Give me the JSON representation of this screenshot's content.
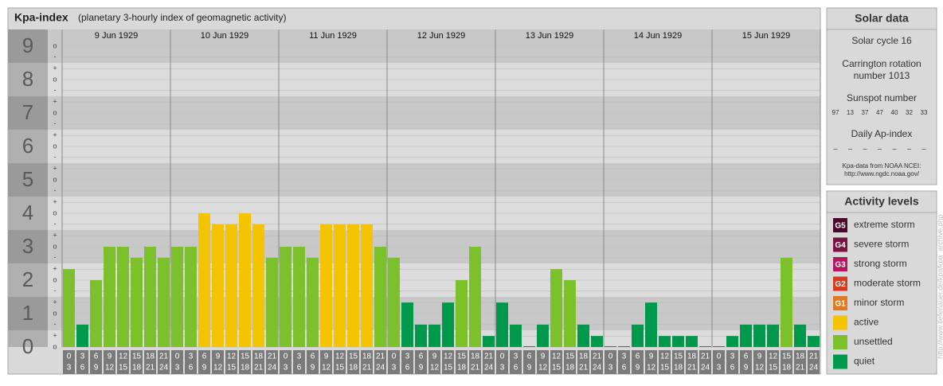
{
  "chart_data": {
    "type": "bar",
    "title": "Kpa-index",
    "subtitle": "(planetary 3-hourly index of geomagnetic activity)",
    "days": [
      "9 Jun 1929",
      "10 Jun 1929",
      "11 Jun 1929",
      "12 Jun 1929",
      "13 Jun 1929",
      "14 Jun 1929",
      "15 Jun 1929"
    ],
    "hours": [
      "0",
      "3",
      "6",
      "9",
      "12",
      "15",
      "18",
      "21",
      "24"
    ],
    "values": [
      2.33,
      0.67,
      2,
      3,
      3,
      2.67,
      3,
      2.67,
      3,
      3,
      4,
      3.67,
      3.67,
      4,
      3.67,
      2.67,
      3,
      3,
      2.67,
      3.67,
      3.67,
      3.67,
      3.67,
      3,
      2.67,
      1.33,
      0.67,
      0.67,
      1.33,
      2,
      3,
      0.33,
      1.33,
      0.67,
      0,
      0.67,
      2.33,
      2,
      0.67,
      0.33,
      0,
      0,
      0.67,
      1.33,
      0.33,
      0.33,
      0.33,
      0,
      0,
      0.33,
      0.67,
      0.67,
      0.67,
      2.67,
      0.67,
      0.33
    ],
    "ylim": [
      0,
      9.5
    ],
    "yticks": [
      0,
      1,
      2,
      3,
      4,
      5,
      6,
      7,
      8,
      9
    ],
    "minor_yticks": [
      {
        "value": 0,
        "label": "o"
      },
      {
        "value": 0.33,
        "label": "+"
      },
      {
        "value": 0.67,
        "label": "-"
      },
      {
        "value": 1,
        "label": "o"
      },
      {
        "value": 1.33,
        "label": "+"
      },
      {
        "value": 1.67,
        "label": "-"
      },
      {
        "value": 2,
        "label": "o"
      },
      {
        "value": 2.33,
        "label": "+"
      },
      {
        "value": 2.67,
        "label": "-"
      },
      {
        "value": 3,
        "label": "o"
      },
      {
        "value": 3.33,
        "label": "+"
      },
      {
        "value": 3.67,
        "label": "-"
      },
      {
        "value": 4,
        "label": "o"
      },
      {
        "value": 4.33,
        "label": "+"
      },
      {
        "value": 4.67,
        "label": "-"
      },
      {
        "value": 5,
        "label": "o"
      },
      {
        "value": 5.33,
        "label": "+"
      },
      {
        "value": 5.67,
        "label": "-"
      },
      {
        "value": 6,
        "label": "o"
      },
      {
        "value": 6.33,
        "label": "+"
      },
      {
        "value": 6.67,
        "label": "-"
      },
      {
        "value": 7,
        "label": "o"
      },
      {
        "value": 7.33,
        "label": "+"
      },
      {
        "value": 7.67,
        "label": "-"
      },
      {
        "value": 8,
        "label": "o"
      },
      {
        "value": 8.33,
        "label": "+"
      },
      {
        "value": 8.67,
        "label": "-"
      },
      {
        "value": 9,
        "label": "o"
      }
    ],
    "levels": [
      {
        "code": "G5",
        "name": "extreme storm",
        "color": "#4a0a2c",
        "min": 8.67
      },
      {
        "code": "G4",
        "name": "severe storm",
        "color": "#7a1242",
        "min": 7.67
      },
      {
        "code": "G3",
        "name": "strong storm",
        "color": "#b5175c",
        "min": 6.67
      },
      {
        "code": "G2",
        "name": "moderate storm",
        "color": "#d63b1f",
        "min": 5.67
      },
      {
        "code": "G1",
        "name": "minor storm",
        "color": "#e07a22",
        "min": 4.67
      },
      {
        "name": "active",
        "color": "#f5c400",
        "min": 3.67
      },
      {
        "name": "unsettled",
        "color": "#7cc12c",
        "min": 2
      },
      {
        "name": "quiet",
        "color": "#00994c",
        "min": 0
      }
    ]
  },
  "solar": {
    "title": "Solar data",
    "cycle": "Solar cycle 16",
    "carrington": [
      "Carrington rotation",
      "number 1013"
    ],
    "sunspot_title": "Sunspot number",
    "sunspots": [
      97,
      13,
      37,
      47,
      40,
      32,
      33
    ],
    "ap_title": "Daily Ap-index",
    "ap": [
      "–",
      "–",
      "–",
      "–",
      "–",
      "–",
      "–"
    ],
    "source": [
      "Kpa-data from NOAA NCEI:",
      "http://www.ngdc.noaa.gov/"
    ]
  },
  "legend_title": "Activity levels",
  "watermark": "http://www.tiefenauer.de/kpa/kpa_archive.php"
}
